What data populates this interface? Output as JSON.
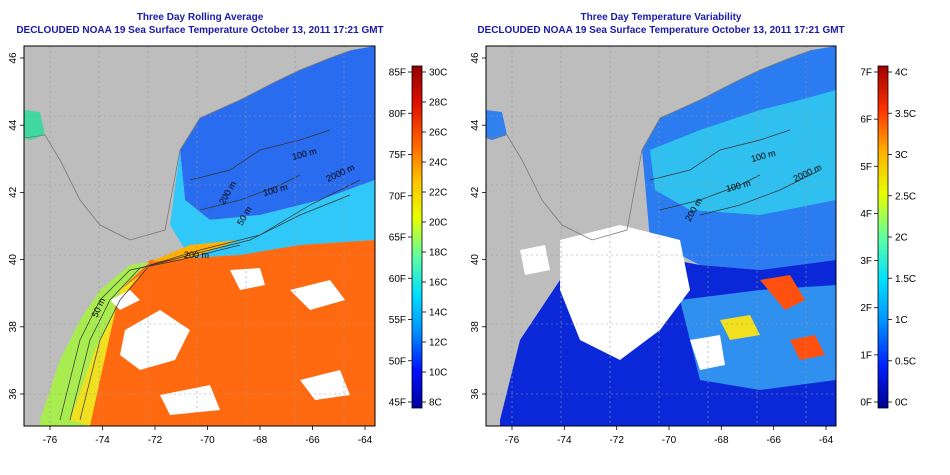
{
  "maps": [
    {
      "title": "Three Day Rolling Average",
      "subtitle": "DECLOUDED NOAA 19 Sea Surface Temperature October 13, 2011 17:21 GMT",
      "x_ticks": [
        "-76",
        "-74",
        "-72",
        "-70",
        "-68",
        "-66",
        "-64"
      ],
      "y_ticks": [
        "36",
        "38",
        "40",
        "42",
        "44",
        "46"
      ],
      "contours": [
        "2000 m",
        "200 m",
        "100 m",
        "50 m",
        "100 m",
        "200 m",
        "50 m"
      ],
      "colorbar": {
        "f_labels": [
          "85F",
          "80F",
          "75F",
          "70F",
          "65F",
          "60F",
          "55F",
          "50F",
          "45F"
        ],
        "c_labels": [
          "30C",
          "28C",
          "26C",
          "24C",
          "22C",
          "20C",
          "18C",
          "16C",
          "14C",
          "12C",
          "10C",
          "8C"
        ],
        "gradient": [
          "#0000a0",
          "#0010ff",
          "#0090ff",
          "#00e0ff",
          "#60ffa0",
          "#e8ff00",
          "#ffc000",
          "#ff6000",
          "#e01000",
          "#900000"
        ]
      }
    },
    {
      "title": "Three Day Temperature Variability",
      "subtitle": "DECLOUDED NOAA 19 Sea Surface Temperature October 13, 2011 17:21 GMT",
      "x_ticks": [
        "-76",
        "-74",
        "-72",
        "-70",
        "-68",
        "-66",
        "-64"
      ],
      "y_ticks": [
        "36",
        "38",
        "40",
        "42",
        "44",
        "46"
      ],
      "contours": [
        "100 m",
        "100 m",
        "2000 m",
        "200 m"
      ],
      "colorbar": {
        "f_labels": [
          "7F",
          "6F",
          "5F",
          "4F",
          "3F",
          "2F",
          "1F",
          "0F"
        ],
        "c_labels": [
          "4C",
          "3.5C",
          "3C",
          "2.5C",
          "2C",
          "1.5C",
          "1C",
          "0.5C",
          "0C"
        ],
        "gradient": [
          "#000090",
          "#0020ff",
          "#0090ff",
          "#00e0ff",
          "#60ffa0",
          "#e8ff00",
          "#ffb000",
          "#ff3000",
          "#a00000"
        ]
      }
    }
  ]
}
